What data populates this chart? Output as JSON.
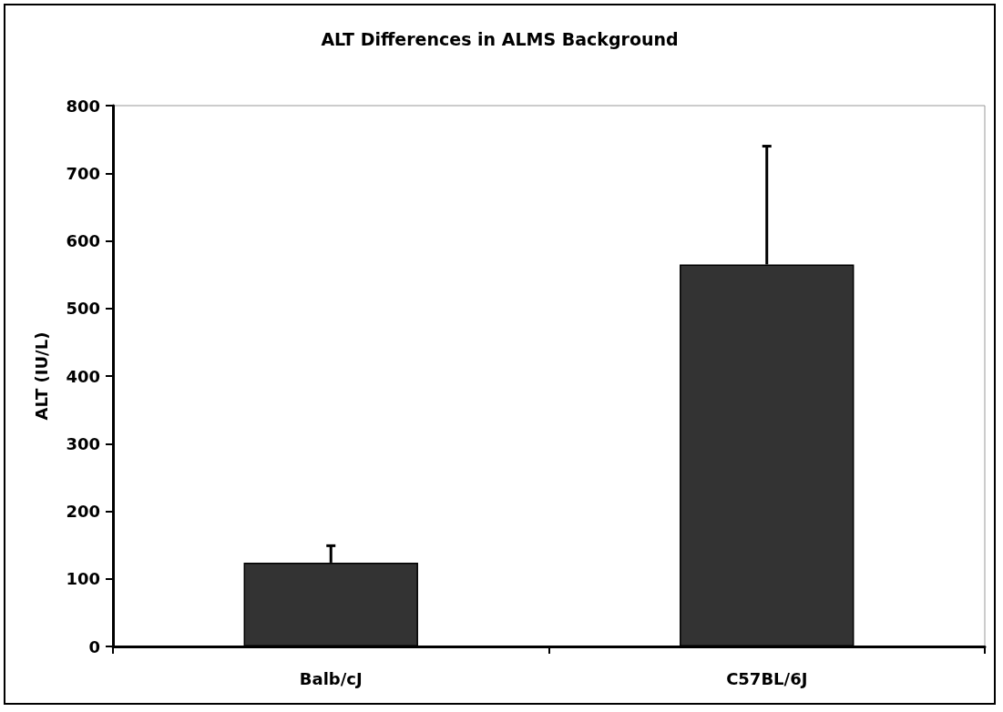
{
  "chart_data": {
    "type": "bar",
    "title": "ALT Differences in ALMS Background",
    "ylabel": "ALT (IU/L)",
    "categories": [
      "Balb/cJ",
      "C57BL/6J"
    ],
    "values": [
      124,
      565
    ],
    "color": "#333333",
    "errors": [
      [
        124,
        149
      ],
      [
        565,
        740
      ]
    ],
    "ylim": [
      0,
      800
    ],
    "yticks": [
      0,
      100,
      200,
      300,
      400,
      500,
      600,
      700,
      800
    ],
    "grid": false
  }
}
